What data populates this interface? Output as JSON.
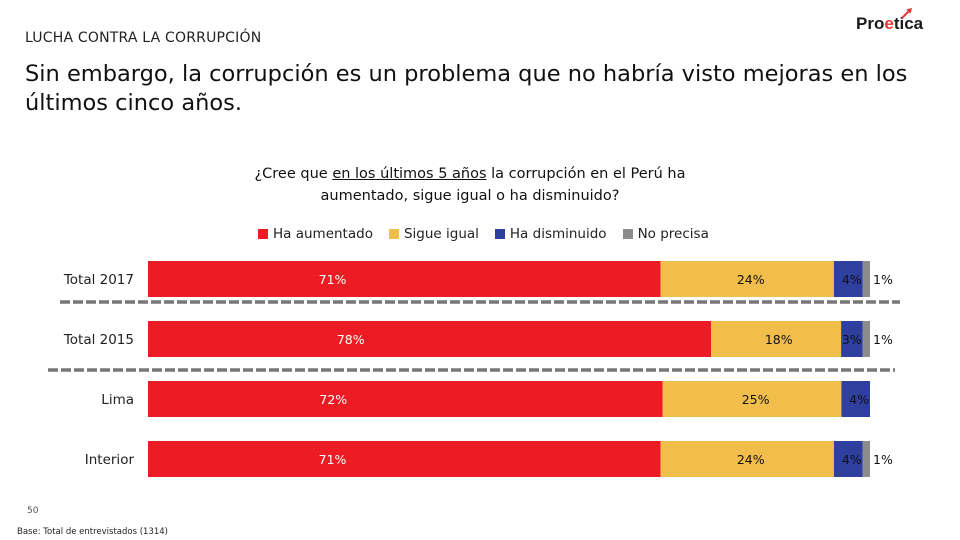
{
  "header": {
    "section": "LUCHA CONTRA LA CORRUPCIÓN",
    "logo_text_a": "Pro",
    "logo_text_b": "e",
    "logo_text_c": "tica",
    "headline": "Sin embargo, la corrupción es un problema que no habría visto mejoras en los últimos cinco años."
  },
  "question": {
    "part1": "¿Cree que ",
    "underlined": "en los últimos 5 años",
    "part2": " la corrupción en el Perú ha aumentado, sigue igual o ha disminuido?"
  },
  "colors": {
    "aumentado": "#ED1C24",
    "igual": "#F2BE4B",
    "disminuido": "#2E3F9E",
    "noprecisa": "#8C8C8C",
    "logo_dark": "#1A1A1A",
    "logo_red": "#E53935"
  },
  "chart_data": {
    "type": "bar",
    "orientation": "horizontal-stacked-100",
    "categories": [
      "Total 2017",
      "Total 2015",
      "Lima",
      "Interior"
    ],
    "series": [
      {
        "name": "Ha aumentado",
        "values": [
          71,
          78,
          72,
          71
        ],
        "labels": [
          "71%",
          "78%",
          "72%",
          "71%"
        ]
      },
      {
        "name": "Sigue igual",
        "values": [
          24,
          18,
          25,
          24
        ],
        "labels": [
          "24%",
          "18%",
          "25%",
          "24%"
        ]
      },
      {
        "name": "Ha disminuido",
        "values": [
          4,
          3,
          4,
          4
        ],
        "labels": [
          "4%",
          "3%",
          "4%",
          "4%"
        ]
      },
      {
        "name": "No precisa",
        "values": [
          1,
          1,
          0,
          1
        ],
        "labels": [
          "1%",
          "1%",
          "",
          "1%"
        ]
      }
    ],
    "legend_position": "top",
    "xlim": [
      0,
      100
    ]
  },
  "footer": {
    "page_number": "50",
    "note": "Base: Total de entrevistados (1314)"
  }
}
